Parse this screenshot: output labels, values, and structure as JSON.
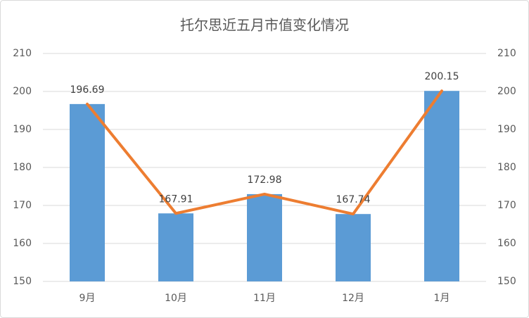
{
  "chart_data": {
    "type": "bar",
    "title": "托尔思近五月市值变化情况",
    "categories": [
      "9月",
      "10月",
      "11月",
      "12月",
      "1月"
    ],
    "series": [
      {
        "type": "bar",
        "color": "#5b9bd5",
        "values": [
          196.69,
          167.91,
          172.98,
          167.74,
          200.15
        ]
      },
      {
        "type": "line",
        "color": "#ed7d31",
        "axis": "y2",
        "values": [
          196.69,
          167.91,
          172.98,
          167.74,
          200.15
        ]
      }
    ],
    "ylim": [
      150,
      210
    ],
    "yticks": [
      150,
      160,
      170,
      180,
      190,
      200,
      210
    ],
    "y2lim": [
      150,
      210
    ],
    "y2ticks": [
      150,
      160,
      170,
      180,
      190,
      200,
      210
    ],
    "grid": true
  }
}
